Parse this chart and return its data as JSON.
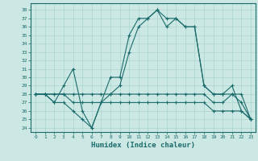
{
  "xlabel": "Humidex (Indice chaleur)",
  "bg_color": "#cce8e4",
  "grid_color": "#aad4d0",
  "line_color": "#1a6b6b",
  "xlim": [
    -0.5,
    23.5
  ],
  "ylim": [
    23.5,
    38.8
  ],
  "xticks": [
    0,
    1,
    2,
    3,
    4,
    5,
    6,
    7,
    8,
    9,
    10,
    11,
    12,
    13,
    14,
    15,
    16,
    17,
    18,
    19,
    20,
    21,
    22,
    23
  ],
  "yticks": [
    24,
    25,
    26,
    27,
    28,
    29,
    30,
    31,
    32,
    33,
    34,
    35,
    36,
    37,
    38
  ],
  "line1_x": [
    0,
    1,
    2,
    3,
    4,
    5,
    6,
    7,
    8,
    9,
    10,
    11,
    12,
    13,
    14,
    15,
    16,
    17,
    18,
    19,
    20,
    21,
    22,
    23
  ],
  "line1_y": [
    28,
    28,
    27,
    29,
    31,
    26,
    24,
    27,
    30,
    30,
    35,
    37,
    37,
    38,
    37,
    37,
    36,
    36,
    29,
    28,
    28,
    29,
    26,
    25
  ],
  "line2_x": [
    0,
    1,
    2,
    3,
    4,
    5,
    6,
    7,
    8,
    9,
    10,
    11,
    12,
    13,
    14,
    15,
    16,
    17,
    18,
    19,
    20,
    21,
    22,
    23
  ],
  "line2_y": [
    28,
    28,
    27,
    27,
    26,
    25,
    24,
    27,
    28,
    29,
    33,
    36,
    37,
    38,
    36,
    37,
    36,
    36,
    29,
    28,
    28,
    28,
    27,
    25
  ],
  "line3_x": [
    0,
    1,
    2,
    3,
    4,
    5,
    6,
    7,
    8,
    9,
    10,
    11,
    12,
    13,
    14,
    15,
    16,
    17,
    18,
    19,
    20,
    21,
    22,
    23
  ],
  "line3_y": [
    28,
    28,
    28,
    28,
    28,
    28,
    28,
    28,
    28,
    28,
    28,
    28,
    28,
    28,
    28,
    28,
    28,
    28,
    28,
    27,
    27,
    28,
    28,
    25
  ],
  "line4_x": [
    0,
    1,
    2,
    3,
    4,
    5,
    6,
    7,
    8,
    9,
    10,
    11,
    12,
    13,
    14,
    15,
    16,
    17,
    18,
    19,
    20,
    21,
    22,
    23
  ],
  "line4_y": [
    28,
    28,
    28,
    28,
    27,
    27,
    27,
    27,
    27,
    27,
    27,
    27,
    27,
    27,
    27,
    27,
    27,
    27,
    27,
    26,
    26,
    26,
    26,
    25
  ]
}
